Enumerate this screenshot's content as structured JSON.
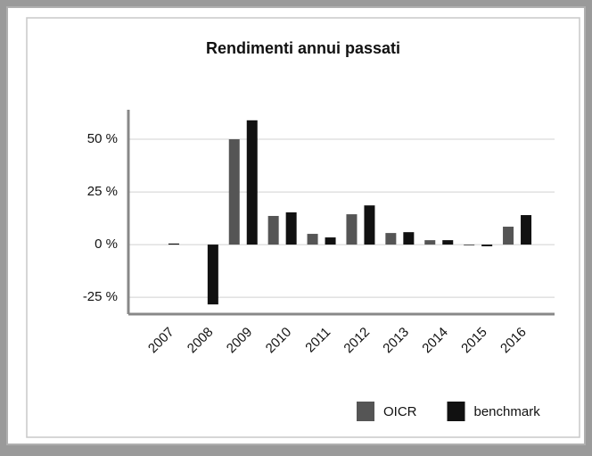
{
  "chart_data": {
    "type": "bar",
    "title": "Rendimenti annui passati",
    "categories": [
      "2007",
      "2008",
      "2009",
      "2010",
      "2011",
      "2012",
      "2013",
      "2014",
      "2015",
      "2016"
    ],
    "series": [
      {
        "name": "OICR",
        "color": "#555555",
        "values": [
          null,
          null,
          50,
          13.6,
          5.1,
          14.4,
          5.5,
          2.1,
          -0.4,
          8.5
        ]
      },
      {
        "name": "benchmark",
        "color": "#111111",
        "values": [
          0.5,
          -28.4,
          59,
          15.3,
          3.4,
          18.6,
          5.9,
          2.1,
          -0.8,
          14
        ]
      }
    ],
    "ylim": [
      -33,
      64
    ],
    "yticks": [
      {
        "value": -25,
        "label": "-25 %"
      },
      {
        "value": 0,
        "label": "0 %"
      },
      {
        "value": 25,
        "label": "25 %"
      },
      {
        "value": 50,
        "label": "50 %"
      }
    ],
    "grid": true,
    "legend": "bottom-right"
  }
}
